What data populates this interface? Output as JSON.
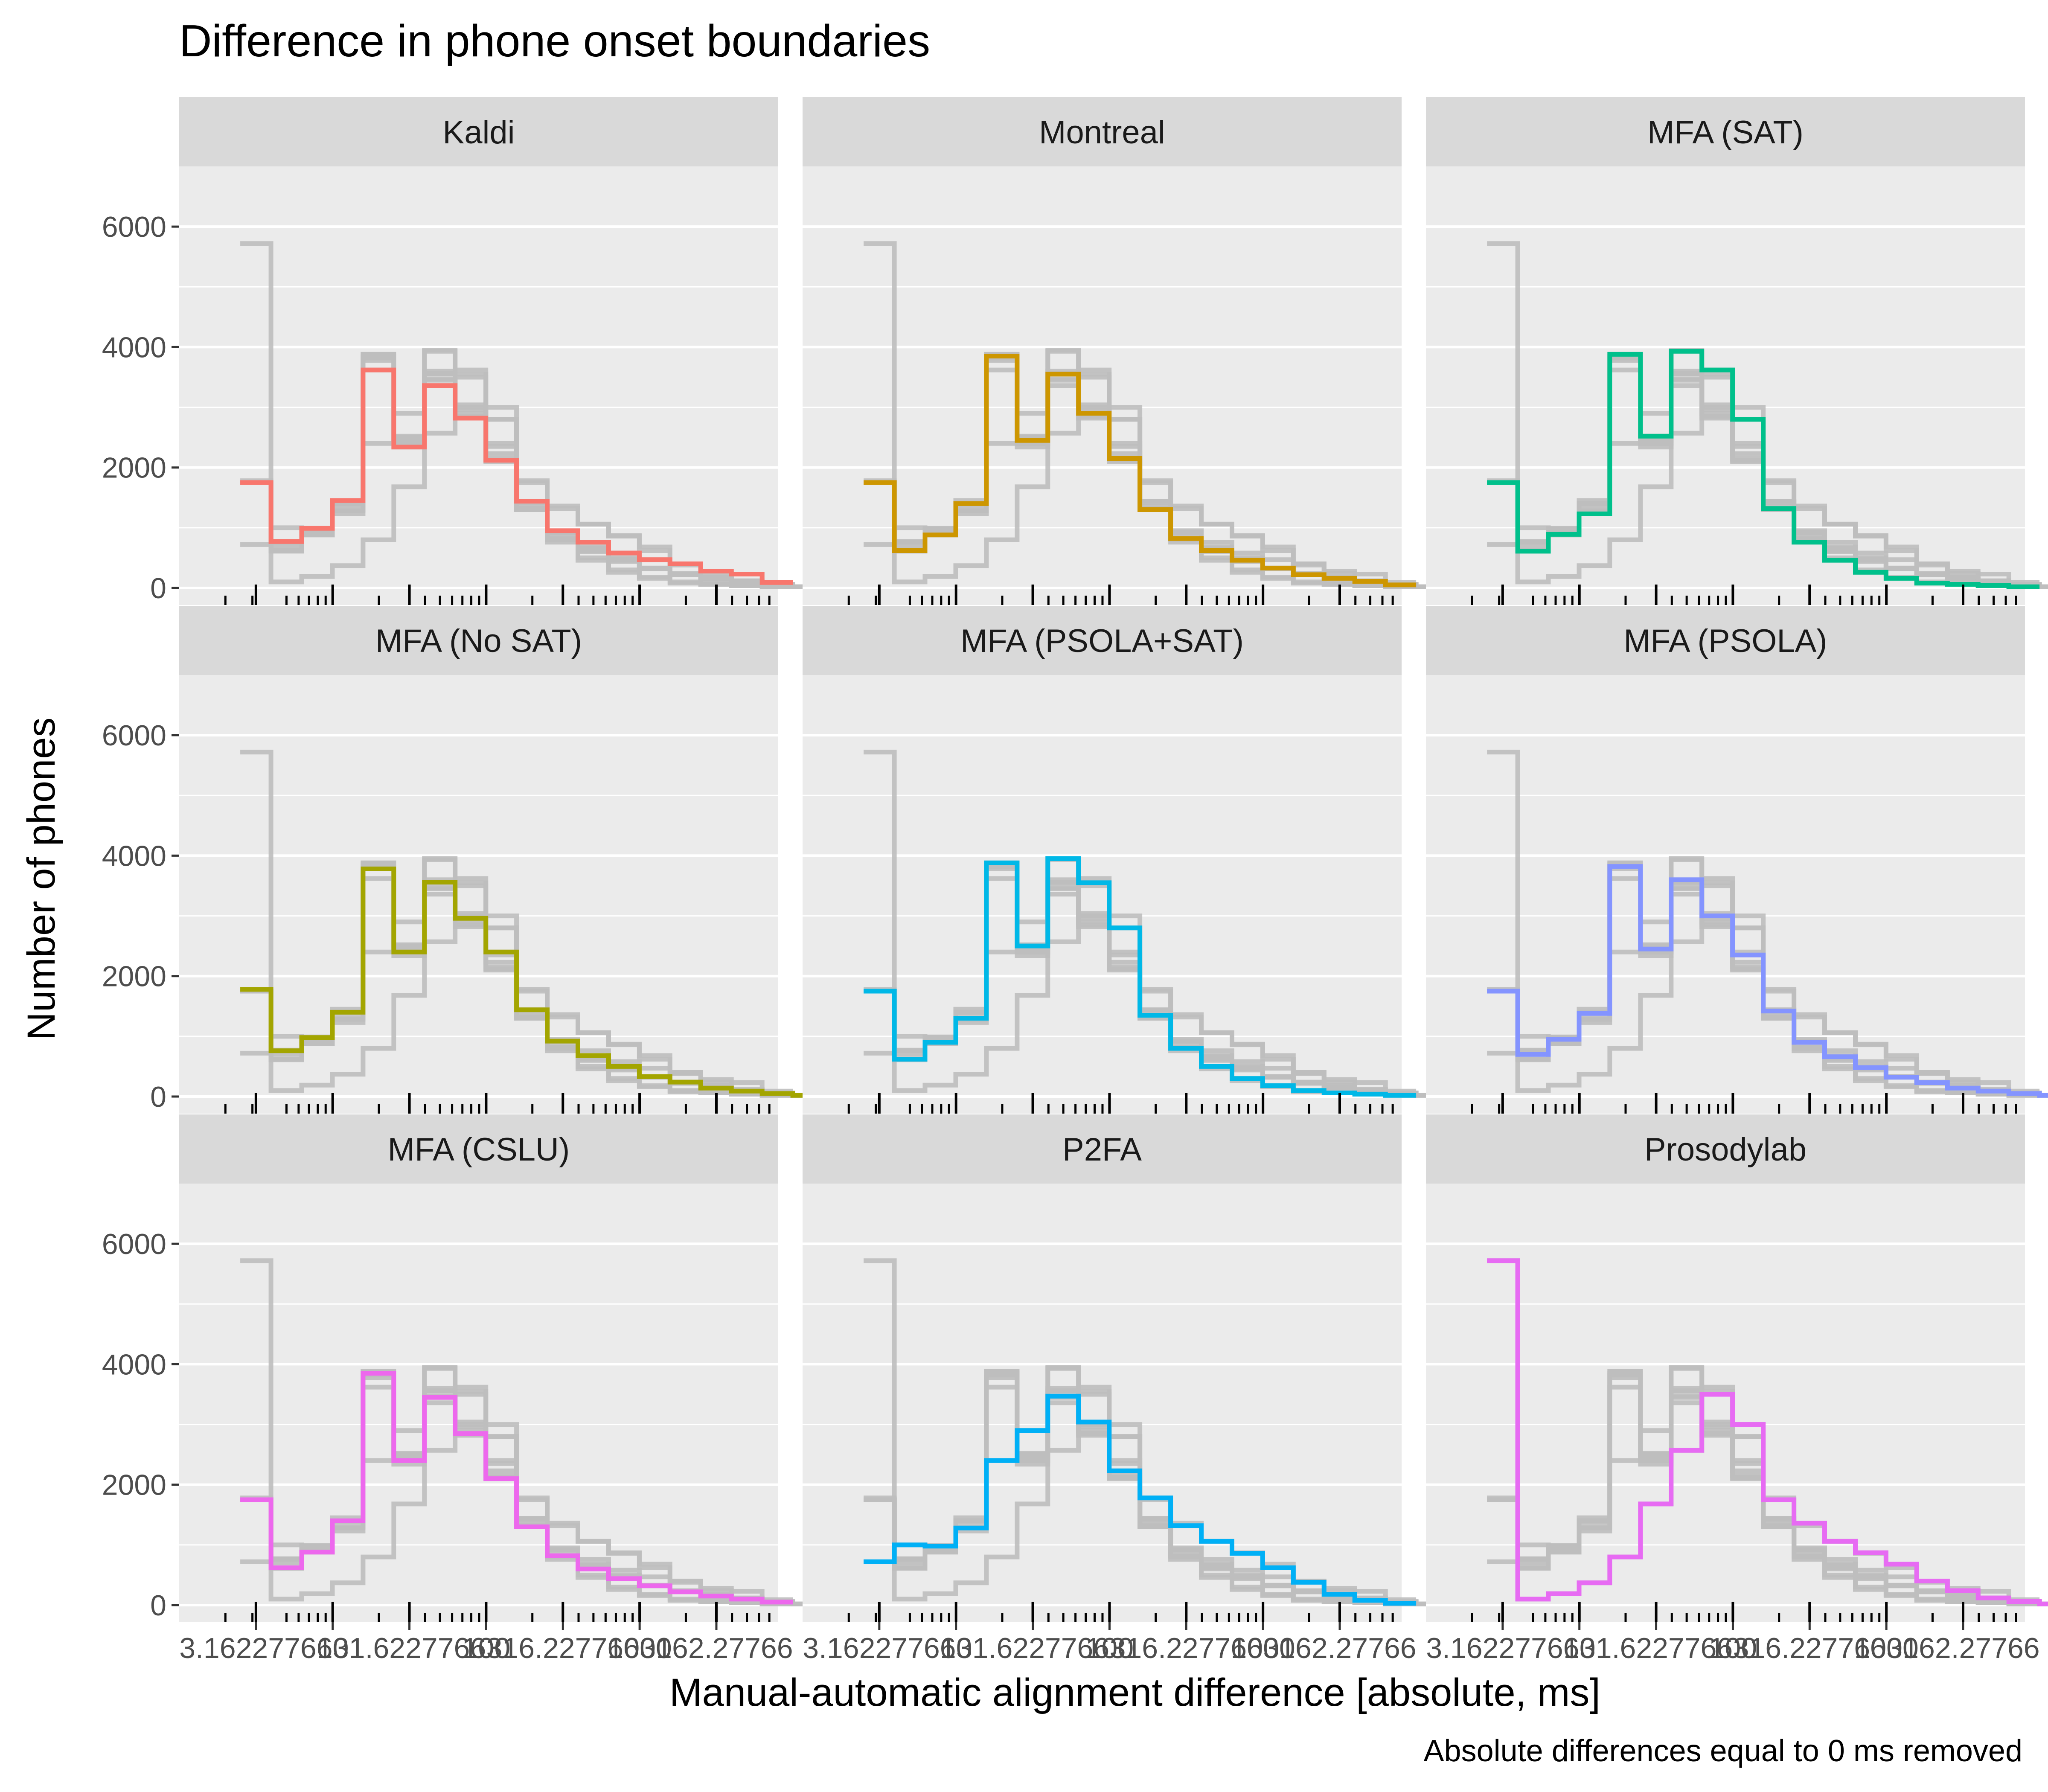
{
  "title": "Difference in phone onset boundaries",
  "xlabel": "Manual-automatic alignment difference [absolute, ms]",
  "ylabel": "Number of phones",
  "caption": "Absolute differences equal to 0 ms removed",
  "x_tick_labels": [
    "3.16227766",
    "10",
    "31.6227766",
    "100",
    "316.227766",
    "1000",
    "3162.27766"
  ],
  "colors": {
    "background": "#ffffff",
    "panel_background": "#ebebeb",
    "strip_background": "#d9d9d9",
    "grid": "#ffffff",
    "ghost": "#bebebe",
    "text": "#000000",
    "axis_text": "#4d4d4d"
  },
  "chart_data": {
    "type": "line",
    "subtype": "step-histogram",
    "x_scale": "log10",
    "x_range": [
      1,
      8000
    ],
    "ylim": [
      0,
      6000
    ],
    "y_ticks": [
      0,
      2000,
      4000,
      6000
    ],
    "x_tick_values": [
      3.16227766,
      10,
      31.6227766,
      100,
      316.227766,
      1000,
      3162.27766
    ],
    "x_minor_ticks": [
      2,
      3,
      5,
      6,
      7,
      8,
      9,
      20,
      40,
      50,
      60,
      70,
      80,
      90,
      200,
      400,
      500,
      600,
      700,
      800,
      900,
      2000,
      4000,
      5000,
      6000,
      7000
    ],
    "facets": [
      {
        "name": "Kaldi",
        "color": "#f8766d",
        "values": [
          1750,
          770,
          990,
          1450,
          3620,
          2340,
          3360,
          2820,
          2120,
          1440,
          950,
          760,
          580,
          470,
          400,
          280,
          230,
          90
        ]
      },
      {
        "name": "Montreal",
        "color": "#cd9600",
        "values": [
          1750,
          620,
          880,
          1400,
          3850,
          2450,
          3550,
          2900,
          2150,
          1300,
          820,
          620,
          460,
          330,
          220,
          160,
          110,
          50
        ]
      },
      {
        "name": "MFA (SAT)",
        "color": "#00c08b",
        "values": [
          1750,
          610,
          890,
          1230,
          3880,
          2520,
          3930,
          3620,
          2800,
          1320,
          760,
          460,
          260,
          160,
          80,
          60,
          40,
          20
        ]
      },
      {
        "name": "MFA (No SAT)",
        "color": "#a3a500",
        "values": [
          1780,
          760,
          980,
          1400,
          3780,
          2400,
          3560,
          2960,
          2400,
          1440,
          920,
          680,
          500,
          330,
          240,
          140,
          90,
          50,
          20
        ]
      },
      {
        "name": "MFA (PSOLA+SAT)",
        "color": "#00b8e7",
        "values": [
          1750,
          620,
          900,
          1300,
          3880,
          2500,
          3950,
          3550,
          2800,
          1350,
          800,
          500,
          300,
          180,
          100,
          60,
          40,
          20
        ]
      },
      {
        "name": "MFA (PSOLA)",
        "color": "#8494ff",
        "values": [
          1750,
          700,
          950,
          1380,
          3820,
          2450,
          3600,
          3000,
          2350,
          1420,
          900,
          660,
          480,
          320,
          230,
          140,
          90,
          50,
          20
        ]
      },
      {
        "name": "MFA (CSLU)",
        "color": "#ed68ed",
        "values": [
          1750,
          620,
          880,
          1400,
          3850,
          2400,
          3450,
          2850,
          2100,
          1300,
          820,
          600,
          440,
          320,
          220,
          150,
          100,
          50
        ]
      },
      {
        "name": "P2FA",
        "color": "#00b0f6",
        "values": [
          720,
          1000,
          980,
          1280,
          2400,
          2900,
          3470,
          3040,
          2230,
          1780,
          1320,
          1060,
          860,
          620,
          380,
          180,
          80,
          30
        ]
      },
      {
        "name": "Prosodylab",
        "color": "#e76bf3",
        "values": [
          5720,
          100,
          190,
          370,
          800,
          1680,
          2570,
          3500,
          3000,
          1750,
          1360,
          1060,
          870,
          680,
          400,
          240,
          120,
          60,
          20
        ]
      }
    ]
  }
}
